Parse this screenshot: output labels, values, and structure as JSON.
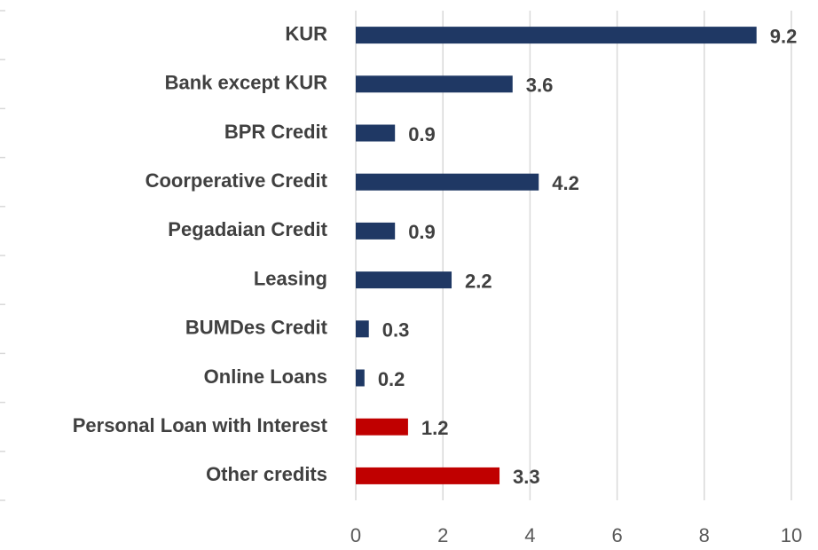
{
  "chart_data": {
    "type": "hbar",
    "categories": [
      "KUR",
      "Bank except KUR",
      "BPR Credit",
      "Coorperative Credit",
      "Pegadaian Credit",
      "Leasing",
      "BUMDes Credit",
      "Online Loans",
      "Personal Loan with Interest",
      "Other credits"
    ],
    "values": [
      9.2,
      3.6,
      0.9,
      4.2,
      0.9,
      2.2,
      0.3,
      0.2,
      1.2,
      3.3
    ],
    "colors": [
      "#1f3864",
      "#1f3864",
      "#1f3864",
      "#1f3864",
      "#1f3864",
      "#1f3864",
      "#1f3864",
      "#1f3864",
      "#c00000",
      "#c00000"
    ],
    "xlim": [
      0,
      10
    ],
    "xticks": [
      0,
      2,
      4,
      6,
      8,
      10
    ],
    "grid": true
  }
}
